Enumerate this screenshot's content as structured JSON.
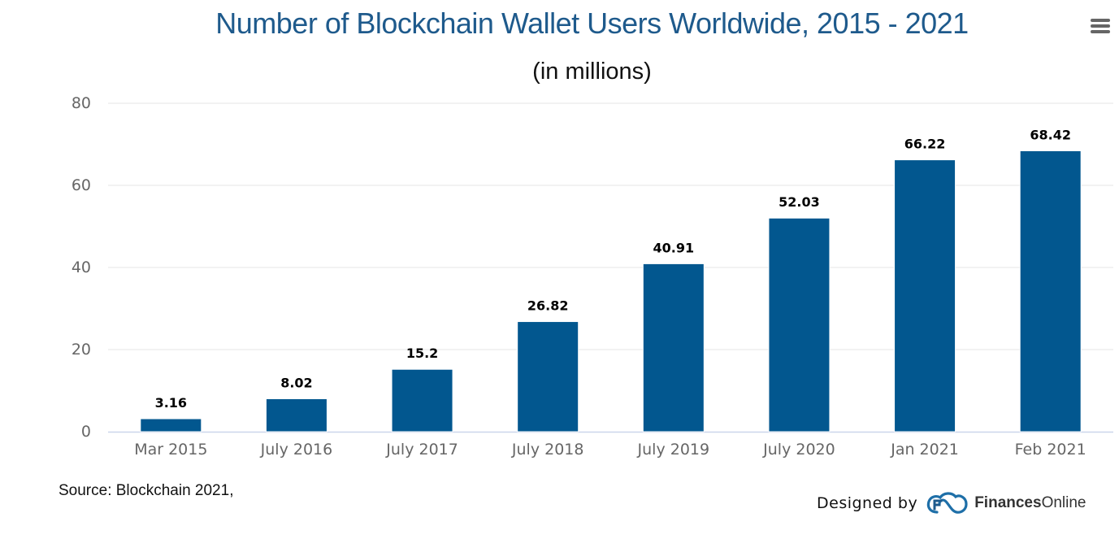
{
  "header": {
    "title": "Number of Blockchain Wallet Users Worldwide, 2015 - 2021",
    "subtitle": "(in millions)",
    "menu_icon": "hamburger-menu-icon"
  },
  "footer": {
    "source": "Source: Blockchain 2021,",
    "designed_by": "Designed by",
    "brand_bold": "Finances",
    "brand_light": "Online",
    "logo_icon": "financesonline-cloud-logo-icon"
  },
  "colors": {
    "bar": "#02578f",
    "title": "#1e5a8c",
    "grid": "#e6e6e6",
    "axis": "#ccd6eb"
  },
  "chart_data": {
    "type": "bar",
    "title": "Number of Blockchain Wallet Users Worldwide, 2015 - 2021",
    "subtitle": "(in millions)",
    "xlabel": "",
    "ylabel": "",
    "categories": [
      "Mar 2015",
      "July 2016",
      "July 2017",
      "July 2018",
      "July 2019",
      "July 2020",
      "Jan 2021",
      "Feb 2021"
    ],
    "values": [
      3.16,
      8.02,
      15.2,
      26.82,
      40.91,
      52.03,
      66.22,
      68.42
    ],
    "data_labels": [
      "3.16",
      "8.02",
      "15.2",
      "26.82",
      "40.91",
      "52.03",
      "66.22",
      "68.42"
    ],
    "ylim": [
      0,
      80
    ],
    "yticks": [
      0,
      20,
      40,
      60,
      80
    ],
    "grid": true,
    "legend": "none"
  }
}
